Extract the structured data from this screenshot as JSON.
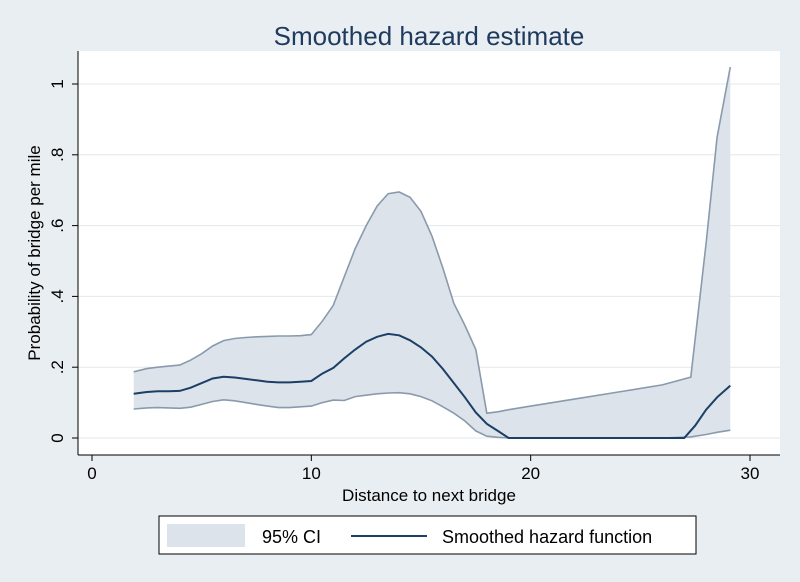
{
  "chart_data": {
    "type": "area",
    "title": "Smoothed hazard estimate",
    "xlabel": "Distance to next bridge",
    "ylabel": "Probability of bridge per mile",
    "xlim": [
      0,
      30
    ],
    "ylim": [
      0,
      1
    ],
    "x_ticks": [
      0,
      10,
      20,
      30
    ],
    "x_tick_labels": [
      "0",
      "10",
      "20",
      "30"
    ],
    "y_ticks": [
      0,
      0.2,
      0.4,
      0.6,
      0.8,
      1.0
    ],
    "y_tick_labels": [
      "0",
      ".2",
      ".4",
      ".6",
      ".8",
      "1"
    ],
    "grid": "horizontal",
    "legend_position": "bottom",
    "series": [
      {
        "name": "95% CI",
        "kind": "band",
        "color": "#dde3ea",
        "edge_color": "#8a9aad",
        "x": [
          1.9,
          2.5,
          3.0,
          3.5,
          4.0,
          4.5,
          5.0,
          5.5,
          6.0,
          6.5,
          7.0,
          7.5,
          8.0,
          8.5,
          9.0,
          9.5,
          10.0,
          10.5,
          11.0,
          11.5,
          12.0,
          12.5,
          13.0,
          13.5,
          14.0,
          14.5,
          15.0,
          15.5,
          16.0,
          16.5,
          17.0,
          17.5,
          18.0,
          18.5,
          19.0,
          20.0,
          22.0,
          24.0,
          26.0,
          27.3,
          28.0,
          28.5,
          29.1
        ],
        "lower": [
          0.082,
          0.085,
          0.086,
          0.085,
          0.084,
          0.087,
          0.095,
          0.103,
          0.108,
          0.105,
          0.1,
          0.095,
          0.09,
          0.086,
          0.086,
          0.088,
          0.09,
          0.1,
          0.107,
          0.106,
          0.117,
          0.121,
          0.125,
          0.127,
          0.128,
          0.125,
          0.117,
          0.105,
          0.088,
          0.07,
          0.048,
          0.02,
          0.005,
          0.002,
          0.0,
          0.0,
          0.0,
          0.0,
          0.0,
          0.003,
          0.01,
          0.016,
          0.022
        ],
        "upper": [
          0.187,
          0.196,
          0.2,
          0.203,
          0.206,
          0.22,
          0.238,
          0.26,
          0.275,
          0.281,
          0.284,
          0.286,
          0.287,
          0.288,
          0.288,
          0.289,
          0.292,
          0.33,
          0.375,
          0.455,
          0.535,
          0.6,
          0.655,
          0.69,
          0.695,
          0.68,
          0.64,
          0.57,
          0.48,
          0.38,
          0.318,
          0.25,
          0.07,
          0.074,
          0.08,
          0.09,
          0.11,
          0.13,
          0.15,
          0.172,
          0.55,
          0.85,
          1.048
        ]
      },
      {
        "name": "Smoothed hazard function",
        "kind": "line",
        "color": "#1b3f66",
        "x": [
          1.9,
          2.5,
          3.0,
          3.5,
          4.0,
          4.5,
          5.0,
          5.5,
          6.0,
          6.5,
          7.0,
          7.5,
          8.0,
          8.5,
          9.0,
          9.5,
          10.0,
          10.5,
          11.0,
          11.5,
          12.0,
          12.5,
          13.0,
          13.5,
          14.0,
          14.5,
          15.0,
          15.5,
          16.0,
          16.5,
          17.0,
          17.5,
          18.0,
          18.5,
          19.0,
          20.0,
          22.0,
          24.0,
          26.0,
          27.0,
          27.5,
          28.0,
          28.5,
          29.1
        ],
        "y": [
          0.125,
          0.13,
          0.132,
          0.132,
          0.133,
          0.142,
          0.155,
          0.168,
          0.173,
          0.171,
          0.167,
          0.163,
          0.159,
          0.157,
          0.157,
          0.159,
          0.161,
          0.182,
          0.198,
          0.225,
          0.25,
          0.272,
          0.286,
          0.294,
          0.29,
          0.276,
          0.256,
          0.23,
          0.195,
          0.155,
          0.115,
          0.072,
          0.04,
          0.02,
          0.0,
          0.0,
          0.0,
          0.0,
          0.0,
          0.0,
          0.035,
          0.08,
          0.115,
          0.148
        ]
      }
    ]
  }
}
